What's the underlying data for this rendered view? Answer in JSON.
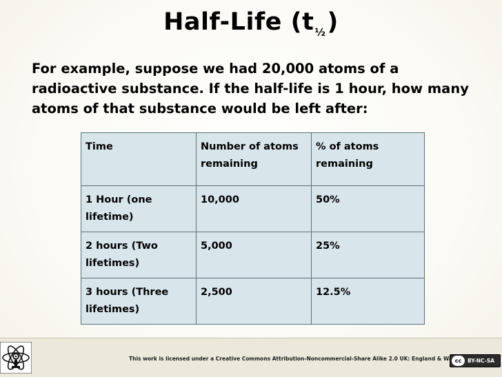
{
  "title": {
    "main": "Half-Life (t",
    "subscript": "½",
    "close": ")"
  },
  "intro": "For example, suppose we had 20,000 atoms of a radioactive substance. If the half-life is 1 hour, how many atoms of that substance would be left after:",
  "table": {
    "headers": [
      "Time",
      "Number of atoms remaining",
      "% of atoms remaining"
    ],
    "rows": [
      [
        "1 Hour (one lifetime)",
        "10,000",
        "50%"
      ],
      [
        "2 hours (Two lifetimes)",
        "5,000",
        "25%"
      ],
      [
        "3 hours (Three lifetimes)",
        "2,500",
        "12.5%"
      ]
    ]
  },
  "footer": {
    "license": "This work is licensed under a Creative Commons Attribution-Noncommercial-Share Alike 2.0 UK: England & Wales License",
    "badge_cc": "cc",
    "badge_text": "BY-NC-SA"
  },
  "colors": {
    "table_fill": "#d8e6ec",
    "table_border": "#5a6e78",
    "footer_bg": "#ece9dc"
  }
}
